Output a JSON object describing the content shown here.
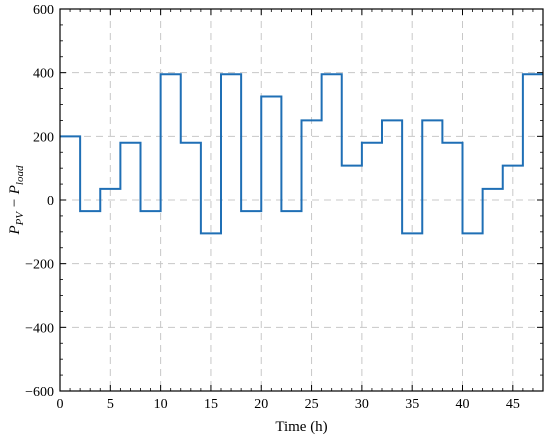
{
  "chart_data": {
    "type": "line",
    "step": "post",
    "xlabel": "Time (h)",
    "ylabel_main": "P",
    "ylabel_sub1": "PV",
    "ylabel_mid": " − P",
    "ylabel_sub2": "load",
    "xlim": [
      0,
      48
    ],
    "ylim": [
      -600,
      600
    ],
    "xticks": [
      0,
      5,
      10,
      15,
      20,
      25,
      30,
      35,
      40,
      45
    ],
    "yticks": [
      -600,
      -400,
      -200,
      0,
      200,
      400,
      600
    ],
    "grid": true,
    "line_color": "#1f6fb5",
    "x": [
      0,
      2,
      4,
      6,
      8,
      10,
      12,
      14,
      16,
      18,
      20,
      22,
      24,
      26,
      28,
      30,
      32,
      34,
      36,
      38,
      40,
      42,
      44,
      46
    ],
    "y": [
      200,
      -35,
      35,
      180,
      -35,
      395,
      180,
      -105,
      395,
      -35,
      325,
      -35,
      250,
      395,
      108,
      180,
      250,
      -105,
      250,
      180,
      -105,
      35,
      108,
      395
    ],
    "x_end": 48
  }
}
